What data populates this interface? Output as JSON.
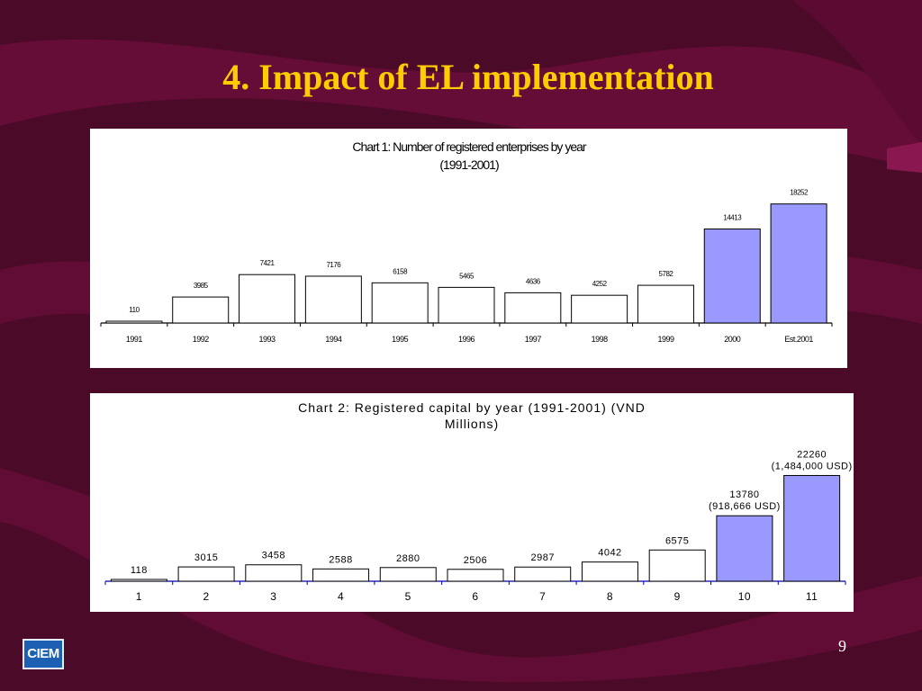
{
  "slide": {
    "title": "4. Impact of EL implementation",
    "page_number": "9",
    "logo_text": "CIEM",
    "background_color": "#4a0a28",
    "title_color": "#ffcc00"
  },
  "chart_data": [
    {
      "type": "bar",
      "title": "Chart 1: Number of registered enterprises by year",
      "subtitle": "(1991-2001)",
      "categories": [
        "1991",
        "1992",
        "1993",
        "1994",
        "1995",
        "1996",
        "1997",
        "1998",
        "1999",
        "2000",
        "Est.2001"
      ],
      "values": [
        110,
        3985,
        7421,
        7176,
        6158,
        5465,
        4636,
        4252,
        5782,
        14413,
        18252
      ],
      "data_labels": [
        "110",
        "3985",
        "7421",
        "7176",
        "6158",
        "5465",
        "4636",
        "4252",
        "5782",
        "14413",
        "18252"
      ],
      "highlighted": [
        false,
        false,
        false,
        false,
        false,
        false,
        false,
        false,
        false,
        true,
        true
      ],
      "ylim": [
        0,
        20000
      ],
      "xlabel": "",
      "ylabel": "",
      "grid": false,
      "bar_color": "#ffffff",
      "highlight_color": "#9999ff"
    },
    {
      "type": "bar",
      "title": "Chart 2: Registered capital by year (1991-2001) (VND",
      "subtitle": "Millions)",
      "categories": [
        "1",
        "2",
        "3",
        "4",
        "5",
        "6",
        "7",
        "8",
        "9",
        "10",
        "11"
      ],
      "values": [
        118,
        3015,
        3458,
        2588,
        2880,
        2506,
        2987,
        4042,
        6575,
        13780,
        22260
      ],
      "data_labels": [
        "118",
        "3015",
        "3458",
        "2588",
        "2880",
        "2506",
        "2987",
        "4042",
        "6575",
        "13780",
        "22260"
      ],
      "data_label_notes": [
        "",
        "",
        "",
        "",
        "",
        "",
        "",
        "",
        "",
        "(918,666 USD)",
        "(1,484,000 USD)"
      ],
      "highlighted": [
        false,
        false,
        false,
        false,
        false,
        false,
        false,
        false,
        false,
        true,
        true
      ],
      "ylim": [
        0,
        25000
      ],
      "xlabel": "",
      "ylabel": "",
      "grid": false,
      "bar_color": "#ffffff",
      "highlight_color": "#9999ff"
    }
  ]
}
